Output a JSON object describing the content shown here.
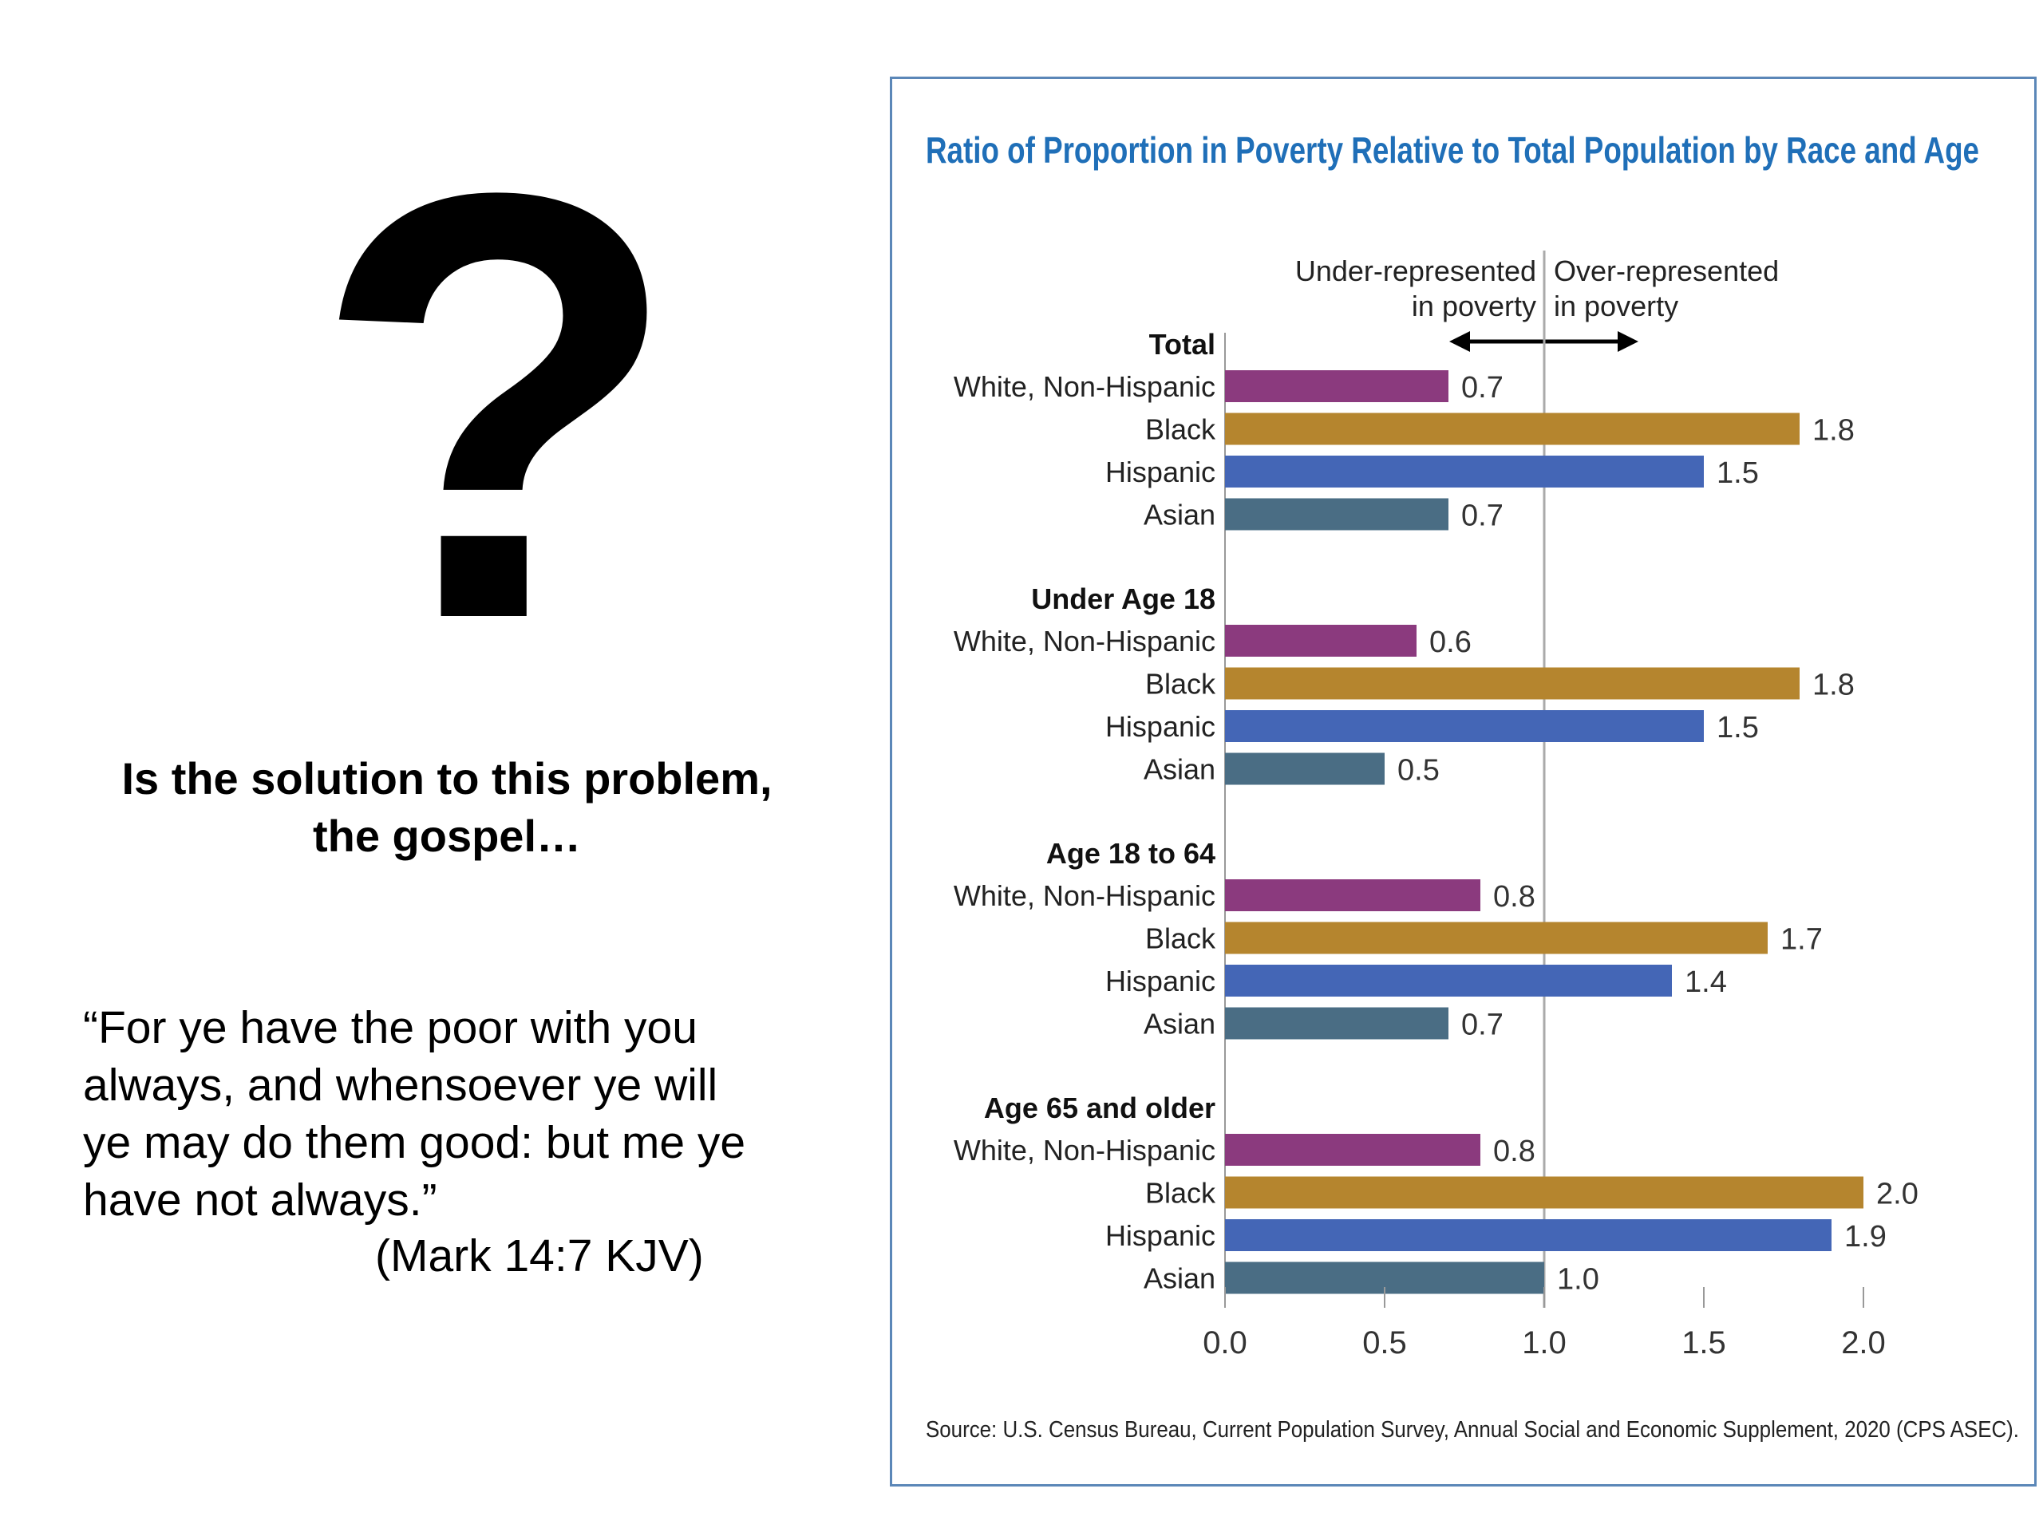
{
  "slide": {
    "question_mark": "?",
    "question_line1": "Is the solution to this problem,",
    "question_line2": "the gospel…",
    "quote_lines": [
      "“For ye have the poor with you",
      "always, and whensoever ye will",
      "ye may do them good: but me ye",
      "have not always.”"
    ],
    "citation": "(Mark 14:7 KJV)"
  },
  "chart_data": {
    "type": "bar",
    "orientation": "horizontal",
    "title": "Ratio of Proportion in Poverty Relative to Total Population by Race and Age",
    "annotation_left": [
      "Under-represented",
      "in poverty"
    ],
    "annotation_right": [
      "Over-represented",
      "in poverty"
    ],
    "reference_line": 1.0,
    "xlim": [
      0,
      2
    ],
    "xticks": [
      "0.0",
      "0.5",
      "1.0",
      "1.5",
      "2.0"
    ],
    "categories": [
      "White, Non-Hispanic",
      "Black",
      "Hispanic",
      "Asian"
    ],
    "colors": {
      "White, Non-Hispanic": "#8b3a7e",
      "Black": "#b5852e",
      "Hispanic": "#4466b6",
      "Asian": "#4a6d84"
    },
    "groups": [
      {
        "name": "Total",
        "values": [
          0.7,
          1.8,
          1.5,
          0.7
        ],
        "labels": [
          "0.7",
          "1.8",
          "1.5",
          "0.7"
        ]
      },
      {
        "name": "Under Age 18",
        "values": [
          0.6,
          1.8,
          1.5,
          0.5
        ],
        "labels": [
          "0.6",
          "1.8",
          "1.5",
          "0.5"
        ]
      },
      {
        "name": "Age 18 to 64",
        "values": [
          0.8,
          1.7,
          1.4,
          0.7
        ],
        "labels": [
          "0.8",
          "1.7",
          "1.4",
          "0.7"
        ]
      },
      {
        "name": "Age 65 and older",
        "values": [
          0.8,
          2.0,
          1.9,
          1.0
        ],
        "labels": [
          "0.8",
          "2.0",
          "1.9",
          "1.0"
        ]
      }
    ],
    "source": "Source: U.S. Census Bureau, Current Population Survey, Annual Social and Economic Supplement, 2020 (CPS ASEC)."
  }
}
